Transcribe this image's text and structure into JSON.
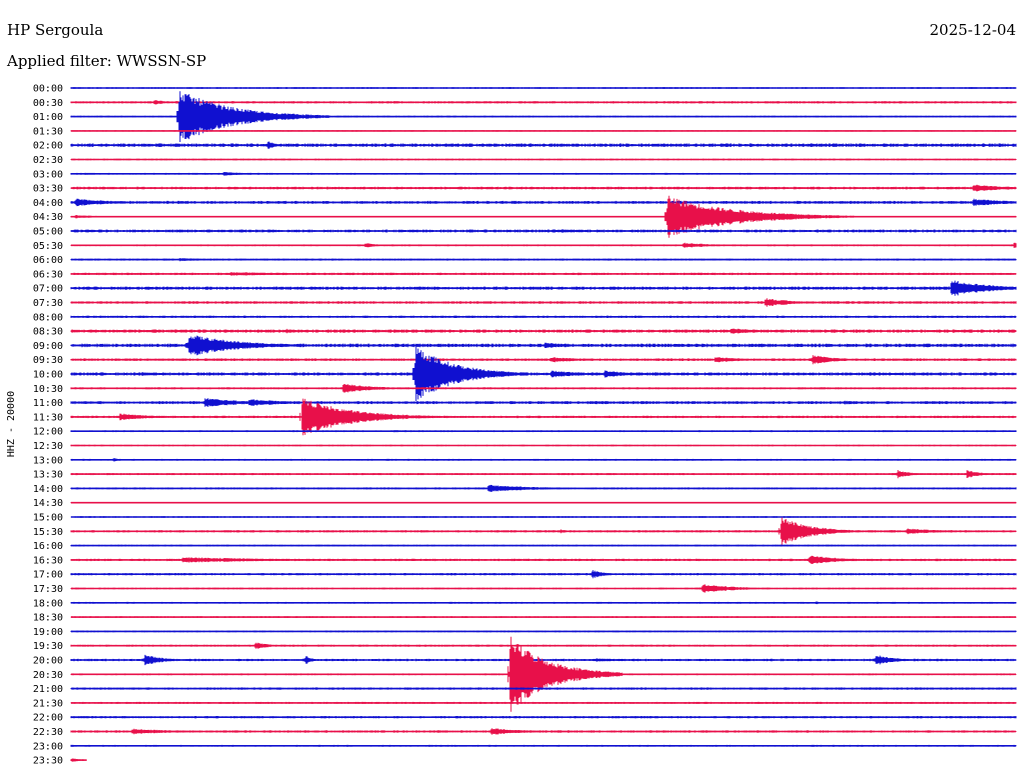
{
  "chart_data": {
    "type": "line",
    "title": "HP Sergoula",
    "date": "2025-12-04",
    "subtitle": "Applied filter: WWSSN-SP",
    "ylabel": "HHZ - 20000",
    "xlabel": "",
    "colors": {
      "even": "#1010d0",
      "odd": "#e8104a"
    },
    "row_labels": [
      "00:00",
      "00:30",
      "01:00",
      "01:30",
      "02:00",
      "02:30",
      "03:00",
      "03:30",
      "04:00",
      "04:30",
      "05:00",
      "05:30",
      "06:00",
      "06:30",
      "07:00",
      "07:30",
      "08:00",
      "08:30",
      "09:00",
      "09:30",
      "10:00",
      "10:30",
      "11:00",
      "11:30",
      "12:00",
      "12:30",
      "13:00",
      "13:30",
      "14:00",
      "14:30",
      "15:00",
      "15:30",
      "16:00",
      "16:30",
      "17:00",
      "17:30",
      "18:00",
      "18:30",
      "19:00",
      "19:30",
      "20:00",
      "20:30",
      "21:00",
      "21:30",
      "22:00",
      "22:30",
      "23:00",
      "23:30"
    ],
    "row_end_minutes": [
      30,
      30,
      30,
      30,
      30,
      30,
      30,
      30,
      30,
      30,
      30,
      30,
      30,
      30,
      30,
      30,
      30,
      30,
      30,
      30,
      30,
      30,
      30,
      30,
      30,
      30,
      30,
      30,
      30,
      30,
      30,
      30,
      30,
      30,
      30,
      30,
      30,
      30,
      30,
      30,
      30,
      30,
      30,
      30,
      30,
      30,
      30,
      0.5
    ],
    "noise": [
      0.6,
      0.8,
      0.6,
      0.5,
      1.2,
      0.6,
      0.6,
      0.9,
      1.0,
      0.5,
      1.0,
      0.6,
      0.7,
      0.8,
      1.1,
      0.9,
      0.8,
      1.1,
      1.2,
      0.9,
      1.1,
      0.7,
      1.0,
      0.8,
      0.6,
      0.5,
      0.6,
      0.7,
      0.7,
      0.5,
      0.6,
      0.8,
      0.6,
      0.8,
      0.8,
      0.6,
      0.6,
      0.6,
      0.6,
      0.7,
      0.8,
      0.6,
      0.8,
      0.7,
      0.8,
      0.8,
      0.6,
      0.6
    ],
    "events": [
      {
        "row": 1,
        "minute": 2.6,
        "amp": 3,
        "dur": 0.4
      },
      {
        "row": 2,
        "minute": 3.4,
        "amp": 28,
        "dur": 1.6
      },
      {
        "row": 2,
        "minute": 6.0,
        "amp": 2,
        "dur": 1.2
      },
      {
        "row": 4,
        "minute": 6.2,
        "amp": 5,
        "dur": 0.3
      },
      {
        "row": 6,
        "minute": 4.8,
        "amp": 2,
        "dur": 1.0
      },
      {
        "row": 7,
        "minute": 28.6,
        "amp": 4,
        "dur": 1.0
      },
      {
        "row": 7,
        "minute": 29.7,
        "amp": 2,
        "dur": 0.3
      },
      {
        "row": 8,
        "minute": 0.1,
        "amp": 4,
        "dur": 1.2
      },
      {
        "row": 8,
        "minute": 28.6,
        "amp": 4,
        "dur": 1.2
      },
      {
        "row": 9,
        "minute": 0.1,
        "amp": 2,
        "dur": 0.8
      },
      {
        "row": 10,
        "minute": 15.4,
        "amp": 2,
        "dur": 1.0
      },
      {
        "row": 9,
        "minute": 18.9,
        "amp": 22,
        "dur": 2.0
      },
      {
        "row": 11,
        "minute": 9.3,
        "amp": 3,
        "dur": 0.4
      },
      {
        "row": 11,
        "minute": 19.4,
        "amp": 3,
        "dur": 1.0
      },
      {
        "row": 11,
        "minute": 29.9,
        "amp": 5,
        "dur": 0.2
      },
      {
        "row": 12,
        "minute": 3.4,
        "amp": 2,
        "dur": 0.8
      },
      {
        "row": 13,
        "minute": 5.0,
        "amp": 2,
        "dur": 2.5
      },
      {
        "row": 13,
        "minute": 16.1,
        "amp": 3,
        "dur": 0.1
      },
      {
        "row": 14,
        "minute": 11.0,
        "amp": 2,
        "dur": 0.5
      },
      {
        "row": 14,
        "minute": 27.9,
        "amp": 9,
        "dur": 1.2
      },
      {
        "row": 15,
        "minute": 22.0,
        "amp": 5,
        "dur": 0.8
      },
      {
        "row": 16,
        "minute": 14.0,
        "amp": 1.5,
        "dur": 1.0
      },
      {
        "row": 17,
        "minute": 6.8,
        "amp": 3,
        "dur": 0.3
      },
      {
        "row": 17,
        "minute": 20.9,
        "amp": 3,
        "dur": 1.0
      },
      {
        "row": 18,
        "minute": 3.7,
        "amp": 12,
        "dur": 1.5
      },
      {
        "row": 18,
        "minute": 15.0,
        "amp": 3,
        "dur": 1.0
      },
      {
        "row": 19,
        "minute": 15.2,
        "amp": 3,
        "dur": 1.0
      },
      {
        "row": 19,
        "minute": 20.4,
        "amp": 3,
        "dur": 1.0
      },
      {
        "row": 19,
        "minute": 23.5,
        "amp": 5,
        "dur": 0.8
      },
      {
        "row": 20,
        "minute": 2.2,
        "amp": 2,
        "dur": 1.0
      },
      {
        "row": 20,
        "minute": 10.9,
        "amp": 30,
        "dur": 1.2
      },
      {
        "row": 20,
        "minute": 15.2,
        "amp": 4,
        "dur": 1.0
      },
      {
        "row": 20,
        "minute": 16.9,
        "amp": 4,
        "dur": 0.9
      },
      {
        "row": 21,
        "minute": 8.6,
        "amp": 5,
        "dur": 1.0
      },
      {
        "row": 22,
        "minute": 4.2,
        "amp": 5,
        "dur": 1.2
      },
      {
        "row": 22,
        "minute": 5.6,
        "amp": 4,
        "dur": 1.2
      },
      {
        "row": 22,
        "minute": 24.5,
        "amp": 2,
        "dur": 1.2
      },
      {
        "row": 23,
        "minute": 1.5,
        "amp": 4,
        "dur": 1.0
      },
      {
        "row": 23,
        "minute": 7.3,
        "amp": 20,
        "dur": 1.5
      },
      {
        "row": 24,
        "minute": 10.2,
        "amp": 2,
        "dur": 0.2
      },
      {
        "row": 26,
        "minute": 1.3,
        "amp": 3,
        "dur": 0.2
      },
      {
        "row": 27,
        "minute": 26.2,
        "amp": 5,
        "dur": 0.4
      },
      {
        "row": 27,
        "minute": 28.4,
        "amp": 5,
        "dur": 0.4
      },
      {
        "row": 28,
        "minute": 13.2,
        "amp": 4,
        "dur": 1.5
      },
      {
        "row": 31,
        "minute": 15.5,
        "amp": 3,
        "dur": 0.2
      },
      {
        "row": 31,
        "minute": 22.5,
        "amp": 16,
        "dur": 0.9
      },
      {
        "row": 31,
        "minute": 26.5,
        "amp": 3,
        "dur": 1.2
      },
      {
        "row": 33,
        "minute": 3.5,
        "amp": 3,
        "dur": 3.0
      },
      {
        "row": 33,
        "minute": 23.4,
        "amp": 5,
        "dur": 1.0
      },
      {
        "row": 34,
        "minute": 16.5,
        "amp": 5,
        "dur": 0.4
      },
      {
        "row": 35,
        "minute": 20.0,
        "amp": 5,
        "dur": 1.0
      },
      {
        "row": 36,
        "minute": 23.6,
        "amp": 2,
        "dur": 0.2
      },
      {
        "row": 39,
        "minute": 5.8,
        "amp": 4,
        "dur": 0.5
      },
      {
        "row": 40,
        "minute": 2.3,
        "amp": 6,
        "dur": 0.6
      },
      {
        "row": 40,
        "minute": 7.4,
        "amp": 6,
        "dur": 0.2
      },
      {
        "row": 40,
        "minute": 16.6,
        "amp": 2,
        "dur": 1.0
      },
      {
        "row": 40,
        "minute": 25.5,
        "amp": 6,
        "dur": 0.6
      },
      {
        "row": 41,
        "minute": 13.9,
        "amp": 40,
        "dur": 1.2
      },
      {
        "row": 45,
        "minute": 1.9,
        "amp": 3,
        "dur": 1.5
      },
      {
        "row": 45,
        "minute": 13.3,
        "amp": 4,
        "dur": 1.0
      },
      {
        "row": 47,
        "minute": 0.0,
        "amp": 3,
        "dur": 0.2
      }
    ]
  }
}
